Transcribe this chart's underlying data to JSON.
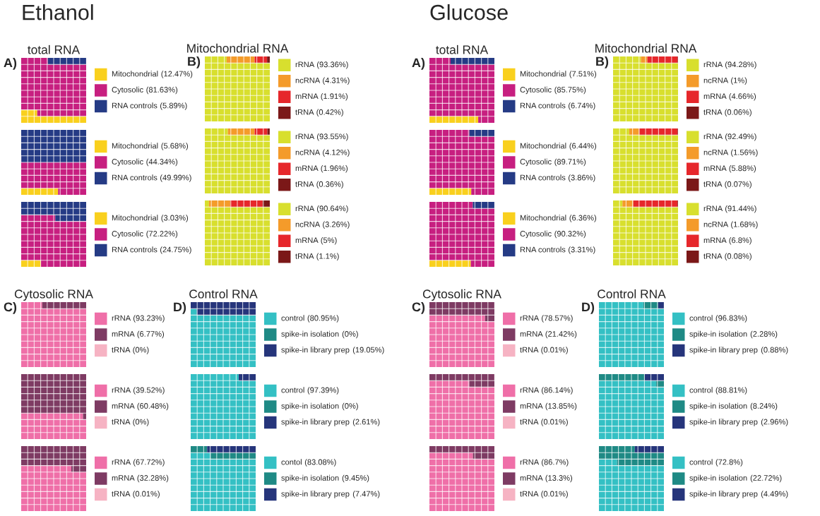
{
  "chart_data": [
    {
      "type": "other",
      "title": "total RNA",
      "annotations": [
        "Ethanol",
        "A)"
      ],
      "categories": [
        "Mitochondrial",
        "Cytosolic",
        "RNA controls"
      ],
      "values": [
        12.47,
        81.63,
        5.89
      ],
      "value_labels": [
        "(12.47%)",
        "(81.63%)",
        "(5.89%)"
      ],
      "colors": [
        "#f9d01e",
        "#c71f80",
        "#253b85"
      ]
    },
    {
      "type": "other",
      "categories": [
        "Mitochondrial",
        "Cytosolic",
        "RNA controls"
      ],
      "values": [
        5.68,
        44.34,
        49.99
      ],
      "value_labels": [
        "(5.68%)",
        "(44.34%)",
        "(49.99%)"
      ],
      "colors": [
        "#f9d01e",
        "#c71f80",
        "#253b85"
      ]
    },
    {
      "type": "other",
      "categories": [
        "Mitochondrial",
        "Cytosolic",
        "RNA controls"
      ],
      "values": [
        3.03,
        72.22,
        24.75
      ],
      "value_labels": [
        "(3.03%)",
        "(72.22%)",
        "(24.75%)"
      ],
      "colors": [
        "#f9d01e",
        "#c71f80",
        "#253b85"
      ]
    },
    {
      "type": "other",
      "title": "Mitochondrial RNA",
      "annotations": [
        "B)"
      ],
      "categories": [
        "rRNA",
        "ncRNA",
        "mRNA",
        "tRNA"
      ],
      "values": [
        93.36,
        4.31,
        1.91,
        0.42
      ],
      "value_labels": [
        "(93.36%)",
        "(4.31%)",
        "(1.91%)",
        "(0.42%)"
      ],
      "colors": [
        "#d8df2e",
        "#f49b2a",
        "#e6272b",
        "#7b1818"
      ]
    },
    {
      "type": "other",
      "categories": [
        "rRNA",
        "ncRNA",
        "mRNA",
        "tRNA"
      ],
      "values": [
        93.55,
        4.12,
        1.96,
        0.36
      ],
      "value_labels": [
        "(93.55%)",
        "(4.12%)",
        "(1.96%)",
        "(0.36%)"
      ],
      "colors": [
        "#d8df2e",
        "#f49b2a",
        "#e6272b",
        "#7b1818"
      ]
    },
    {
      "type": "other",
      "categories": [
        "rRNA",
        "ncRNA",
        "mRNA",
        "tRNA"
      ],
      "values": [
        90.64,
        3.26,
        5,
        1.1
      ],
      "value_labels": [
        "(90.64%)",
        "(3.26%)",
        "(5%)",
        "(1.1%)"
      ],
      "colors": [
        "#d8df2e",
        "#f49b2a",
        "#e6272b",
        "#7b1818"
      ]
    },
    {
      "type": "other",
      "title": "Cytosolic RNA",
      "annotations": [
        "C)"
      ],
      "categories": [
        "rRNA",
        "mRNA",
        "tRNA"
      ],
      "values": [
        93.23,
        6.77,
        0
      ],
      "value_labels": [
        "(93.23%)",
        "(6.77%)",
        "(0%)"
      ],
      "colors": [
        "#ef6fa8",
        "#7e3b63",
        "#f6b3c3"
      ]
    },
    {
      "type": "other",
      "categories": [
        "rRNA",
        "mRNA",
        "tRNA"
      ],
      "values": [
        39.52,
        60.48,
        0
      ],
      "value_labels": [
        "(39.52%)",
        "(60.48%)",
        "(0%)"
      ],
      "colors": [
        "#ef6fa8",
        "#7e3b63",
        "#f6b3c3"
      ]
    },
    {
      "type": "other",
      "categories": [
        "rRNA",
        "mRNA",
        "tRNA"
      ],
      "values": [
        67.72,
        32.28,
        0.01
      ],
      "value_labels": [
        "(67.72%)",
        "(32.28%)",
        "(0.01%)"
      ],
      "colors": [
        "#ef6fa8",
        "#7e3b63",
        "#f6b3c3"
      ]
    },
    {
      "type": "other",
      "title": "Control RNA",
      "annotations": [
        "D)"
      ],
      "categories": [
        "control",
        "spike-in isolation",
        "spike-in library prep"
      ],
      "values": [
        80.95,
        0,
        19.05
      ],
      "value_labels": [
        "(80.95%)",
        "(0%)",
        "(19.05%)"
      ],
      "colors": [
        "#34c0c4",
        "#1f8a85",
        "#26357b"
      ]
    },
    {
      "type": "other",
      "categories": [
        "control",
        "spike-in isolation",
        "spike-in library prep"
      ],
      "values": [
        97.39,
        0,
        2.61
      ],
      "value_labels": [
        "(97.39%)",
        "(0%)",
        "(2.61%)"
      ],
      "colors": [
        "#34c0c4",
        "#1f8a85",
        "#26357b"
      ]
    },
    {
      "type": "other",
      "categories": [
        "contol",
        "spike-in isolation",
        "spike-in library prep"
      ],
      "values": [
        83.08,
        9.45,
        7.47
      ],
      "value_labels": [
        "(83.08%)",
        "(9.45%)",
        "(7.47%)"
      ],
      "colors": [
        "#34c0c4",
        "#1f8a85",
        "#26357b"
      ]
    },
    {
      "type": "other",
      "title": "total RNA",
      "annotations": [
        "Glucose",
        "A)"
      ],
      "categories": [
        "Mitochondrial",
        "Cytosolic",
        "RNA controls"
      ],
      "values": [
        7.51,
        85.75,
        6.74
      ],
      "value_labels": [
        "(7.51%)",
        "(85.75%)",
        "(6.74%)"
      ],
      "colors": [
        "#f9d01e",
        "#c71f80",
        "#253b85"
      ]
    },
    {
      "type": "other",
      "categories": [
        "Mitochondrial",
        "Cytosolic",
        "RNA controls"
      ],
      "values": [
        6.44,
        89.71,
        3.86
      ],
      "value_labels": [
        "(6.44%)",
        "(89.71%)",
        "(3.86%)"
      ],
      "colors": [
        "#f9d01e",
        "#c71f80",
        "#253b85"
      ]
    },
    {
      "type": "other",
      "categories": [
        "Mitochondrial",
        "Cytosolic",
        "RNA controls"
      ],
      "values": [
        6.36,
        90.32,
        3.31
      ],
      "value_labels": [
        "(6.36%)",
        "(90.32%)",
        "(3.31%)"
      ],
      "colors": [
        "#f9d01e",
        "#c71f80",
        "#253b85"
      ]
    },
    {
      "type": "other",
      "title": "Mitochondrial RNA",
      "annotations": [
        "B)"
      ],
      "categories": [
        "rRNA",
        "ncRNA",
        "mRNA",
        "tRNA"
      ],
      "values": [
        94.28,
        1,
        4.66,
        0.06
      ],
      "value_labels": [
        "(94.28%)",
        "(1%)",
        "(4.66%)",
        "(0.06%)"
      ],
      "colors": [
        "#d8df2e",
        "#f49b2a",
        "#e6272b",
        "#7b1818"
      ]
    },
    {
      "type": "other",
      "categories": [
        "rRNA",
        "ncRNA",
        "mRNA",
        "tRNA"
      ],
      "values": [
        92.49,
        1.56,
        5.88,
        0.07
      ],
      "value_labels": [
        "(92.49%)",
        "(1.56%)",
        "(5.88%)",
        "(0.07%)"
      ],
      "colors": [
        "#d8df2e",
        "#f49b2a",
        "#e6272b",
        "#7b1818"
      ]
    },
    {
      "type": "other",
      "categories": [
        "rRNA",
        "ncRNA",
        "mRNA",
        "tRNA"
      ],
      "values": [
        91.44,
        1.68,
        6.8,
        0.08
      ],
      "value_labels": [
        "(91.44%)",
        "(1.68%)",
        "(6.8%)",
        "(0.08%)"
      ],
      "colors": [
        "#d8df2e",
        "#f49b2a",
        "#e6272b",
        "#7b1818"
      ]
    },
    {
      "type": "other",
      "title": "Cytosolic RNA",
      "annotations": [
        "C)"
      ],
      "categories": [
        "rRNA",
        "mRNA",
        "tRNA"
      ],
      "values": [
        78.57,
        21.42,
        0.01
      ],
      "value_labels": [
        "(78.57%)",
        "(21.42%)",
        "(0.01%)"
      ],
      "colors": [
        "#ef6fa8",
        "#7e3b63",
        "#f6b3c3"
      ]
    },
    {
      "type": "other",
      "categories": [
        "rRNA",
        "mRNA",
        "tRNA"
      ],
      "values": [
        86.14,
        13.85,
        0.01
      ],
      "value_labels": [
        "(86.14%)",
        "(13.85%)",
        "(0.01%)"
      ],
      "colors": [
        "#ef6fa8",
        "#7e3b63",
        "#f6b3c3"
      ]
    },
    {
      "type": "other",
      "categories": [
        "rRNA",
        "mRNA",
        "tRNA"
      ],
      "values": [
        86.7,
        13.3,
        0.01
      ],
      "value_labels": [
        "(86.7%)",
        "(13.3%)",
        "(0.01%)"
      ],
      "colors": [
        "#ef6fa8",
        "#7e3b63",
        "#f6b3c3"
      ]
    },
    {
      "type": "other",
      "title": "Control RNA",
      "annotations": [
        "D)"
      ],
      "categories": [
        "control",
        "spike-in isolation",
        "spike-in library prep"
      ],
      "values": [
        96.83,
        2.28,
        0.88
      ],
      "value_labels": [
        "(96.83%)",
        "(2.28%)",
        "(0.88%)"
      ],
      "colors": [
        "#34c0c4",
        "#1f8a85",
        "#26357b"
      ]
    },
    {
      "type": "other",
      "categories": [
        "control",
        "spike-in isolation",
        "spike-in library prep"
      ],
      "values": [
        88.81,
        8.24,
        2.96
      ],
      "value_labels": [
        "(88.81%)",
        "(8.24%)",
        "(2.96%)"
      ],
      "colors": [
        "#34c0c4",
        "#1f8a85",
        "#26357b"
      ]
    },
    {
      "type": "other",
      "categories": [
        "control",
        "spike-in isolation",
        "spike-in library prep"
      ],
      "values": [
        72.8,
        22.72,
        4.49
      ],
      "value_labels": [
        "(72.8%)",
        "(22.72%)",
        "(4.49%)"
      ],
      "colors": [
        "#34c0c4",
        "#1f8a85",
        "#26357b"
      ]
    }
  ]
}
